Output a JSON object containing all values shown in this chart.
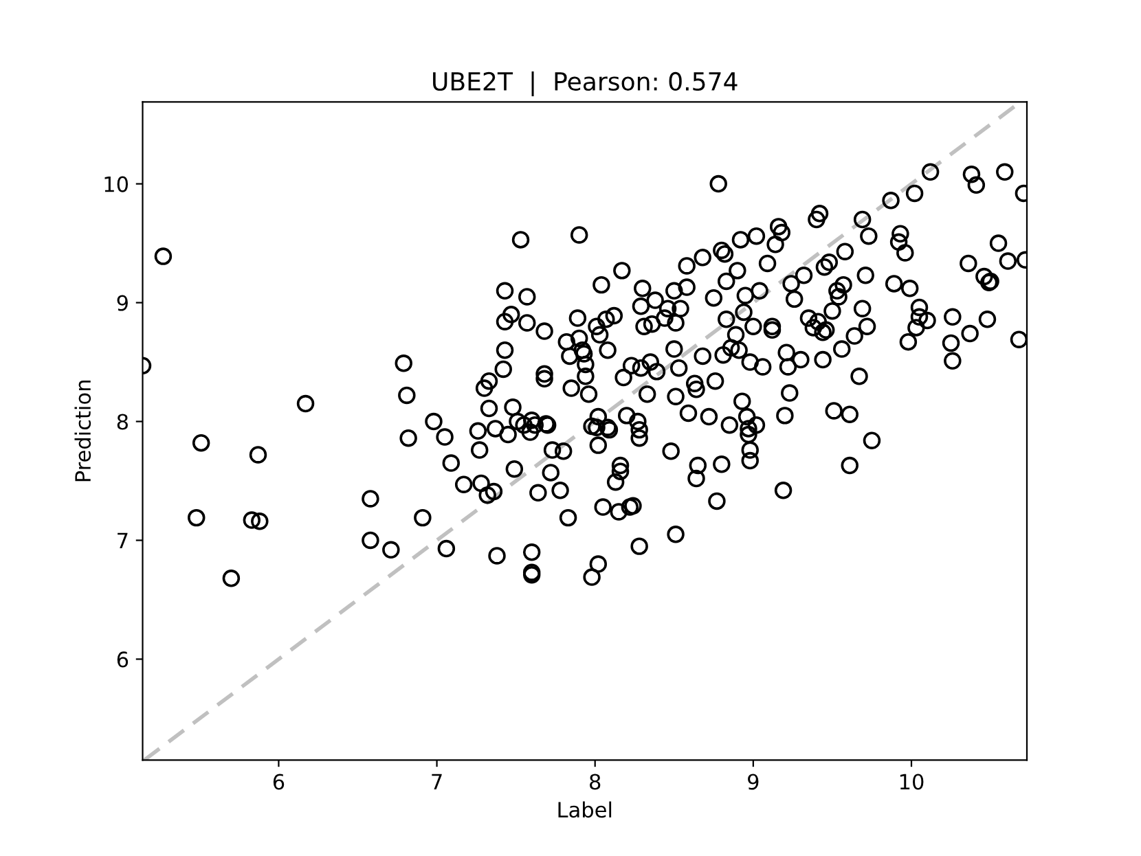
{
  "chart_data": {
    "type": "scatter",
    "title": "UBE2T  |  Pearson: 0.574",
    "xlabel": "Label",
    "ylabel": "Prediction",
    "xlim": [
      5.14,
      10.73
    ],
    "ylim": [
      5.15,
      10.69
    ],
    "xticks": [
      6,
      7,
      8,
      9,
      10
    ],
    "yticks": [
      6,
      7,
      8,
      9,
      10
    ],
    "marker": "circle",
    "series": [
      {
        "color": "#000000",
        "x": [
          5.14,
          5.27,
          5.48,
          5.51,
          5.7,
          5.83,
          5.88,
          5.87,
          6.17,
          6.58,
          6.58,
          6.71,
          6.79,
          6.81,
          6.82,
          6.91,
          6.98,
          7.05,
          7.06,
          7.09,
          7.17,
          7.26,
          7.27,
          7.28,
          7.3,
          7.32,
          7.33,
          7.33,
          7.36,
          7.37,
          7.38,
          7.42,
          7.43,
          7.43,
          7.43,
          7.45,
          7.47,
          7.48,
          7.49,
          7.51,
          7.53,
          7.55,
          7.57,
          7.57,
          7.59,
          7.6,
          7.6,
          7.6,
          7.6,
          7.62,
          7.64,
          7.68,
          7.68,
          7.68,
          7.69,
          7.7,
          7.72,
          7.73,
          7.78,
          7.8,
          7.82,
          7.83,
          7.84,
          7.85,
          7.9,
          7.89,
          7.9,
          7.92,
          7.93,
          7.94,
          7.94,
          7.96,
          7.98,
          7.98,
          8.01,
          8.01,
          8.02,
          8.02,
          8.02,
          8.03,
          8.04,
          8.05,
          8.07,
          8.08,
          8.08,
          8.09,
          8.12,
          8.13,
          8.15,
          8.16,
          8.16,
          8.17,
          8.18,
          8.2,
          8.22,
          8.23,
          8.24,
          8.27,
          8.28,
          8.28,
          8.28,
          8.29,
          8.29,
          8.3,
          8.31,
          8.33,
          8.35,
          8.36,
          8.38,
          8.39,
          8.44,
          8.46,
          8.48,
          8.5,
          8.5,
          8.51,
          8.51,
          8.51,
          8.53,
          8.54,
          8.58,
          8.58,
          8.59,
          8.63,
          8.64,
          8.64,
          8.65,
          8.68,
          8.68,
          8.72,
          8.75,
          8.76,
          8.77,
          8.78,
          8.8,
          8.8,
          8.81,
          8.82,
          8.83,
          8.83,
          8.85,
          8.86,
          8.89,
          8.9,
          8.91,
          8.92,
          8.93,
          8.94,
          8.95,
          8.96,
          8.97,
          8.97,
          8.98,
          8.98,
          8.98,
          9.0,
          9.02,
          9.02,
          9.04,
          9.06,
          9.09,
          9.12,
          9.12,
          9.14,
          9.16,
          9.18,
          9.19,
          9.2,
          9.21,
          9.22,
          9.23,
          9.24,
          9.26,
          9.3,
          9.32,
          9.35,
          9.38,
          9.4,
          9.41,
          9.42,
          9.44,
          9.44,
          9.45,
          9.46,
          9.48,
          9.5,
          9.51,
          9.53,
          9.54,
          9.56,
          9.57,
          9.58,
          9.61,
          9.61,
          9.64,
          9.67,
          9.69,
          9.69,
          9.71,
          9.72,
          9.75,
          9.73,
          9.87,
          9.89,
          9.92,
          9.93,
          9.96,
          9.98,
          9.99,
          10.02,
          10.03,
          10.05,
          10.05,
          10.1,
          10.12,
          10.25,
          10.26,
          10.26,
          10.36,
          10.37,
          10.38,
          10.41,
          10.46,
          10.48,
          10.49,
          10.5,
          10.55,
          10.59,
          10.61,
          10.68,
          10.71,
          10.72
        ],
        "values": [
          8.47,
          9.39,
          7.19,
          7.82,
          6.68,
          7.17,
          7.16,
          7.72,
          8.15,
          7.35,
          7.0,
          6.92,
          8.49,
          8.22,
          7.86,
          7.19,
          8.0,
          7.87,
          6.93,
          7.65,
          7.47,
          7.92,
          7.76,
          7.48,
          8.28,
          7.38,
          8.34,
          8.11,
          7.41,
          7.94,
          6.87,
          8.44,
          8.6,
          8.84,
          9.1,
          7.89,
          8.9,
          8.12,
          7.6,
          8.0,
          9.53,
          7.97,
          9.05,
          8.83,
          7.91,
          8.01,
          6.9,
          6.71,
          6.73,
          7.97,
          7.4,
          8.4,
          8.36,
          8.76,
          7.98,
          7.97,
          7.57,
          7.76,
          7.42,
          7.75,
          8.67,
          7.19,
          8.55,
          8.28,
          9.57,
          8.87,
          8.7,
          8.6,
          8.57,
          8.48,
          8.38,
          8.23,
          7.96,
          6.69,
          8.8,
          7.95,
          8.04,
          7.8,
          6.8,
          8.73,
          9.15,
          7.28,
          8.86,
          8.6,
          7.95,
          7.93,
          8.89,
          7.49,
          7.24,
          7.63,
          7.58,
          9.27,
          8.37,
          8.05,
          7.28,
          8.47,
          7.29,
          8.0,
          7.93,
          7.86,
          6.95,
          8.45,
          8.97,
          9.12,
          8.8,
          8.23,
          8.5,
          8.82,
          9.02,
          8.42,
          8.87,
          8.95,
          7.75,
          9.1,
          8.61,
          8.83,
          8.21,
          7.05,
          8.45,
          8.95,
          9.31,
          9.13,
          8.07,
          8.32,
          8.27,
          7.52,
          7.63,
          8.55,
          9.38,
          8.04,
          9.04,
          8.34,
          7.33,
          10.0,
          7.64,
          9.44,
          8.56,
          9.41,
          9.18,
          8.86,
          7.97,
          8.62,
          8.73,
          9.27,
          8.6,
          9.53,
          8.17,
          8.92,
          9.06,
          8.04,
          7.94,
          7.89,
          7.76,
          7.67,
          8.5,
          8.8,
          9.56,
          7.97,
          9.1,
          8.46,
          9.33,
          8.8,
          8.77,
          9.49,
          9.64,
          9.59,
          7.42,
          8.05,
          8.58,
          8.46,
          8.24,
          9.16,
          9.03,
          8.52,
          9.23,
          8.87,
          8.79,
          9.7,
          8.84,
          9.75,
          8.75,
          8.52,
          9.3,
          8.77,
          9.34,
          8.93,
          8.09,
          9.1,
          9.05,
          8.61,
          9.15,
          9.43,
          7.63,
          8.06,
          8.72,
          8.38,
          8.95,
          9.7,
          9.23,
          8.8,
          7.84,
          9.56,
          9.86,
          9.16,
          9.51,
          9.58,
          9.42,
          8.67,
          9.12,
          9.92,
          8.79,
          8.88,
          8.96,
          8.85,
          10.1,
          8.66,
          8.51,
          8.88,
          9.33,
          8.74,
          10.08,
          9.99,
          9.22,
          8.86,
          9.17,
          9.18,
          9.5,
          10.1,
          9.35,
          8.69,
          9.92,
          9.36
        ]
      },
      {
        "type": "line",
        "color": "#c0c0c0",
        "line_style": "dashed",
        "marker": "none",
        "x": [
          5.15,
          10.69
        ],
        "values": [
          5.15,
          10.69
        ]
      }
    ]
  }
}
